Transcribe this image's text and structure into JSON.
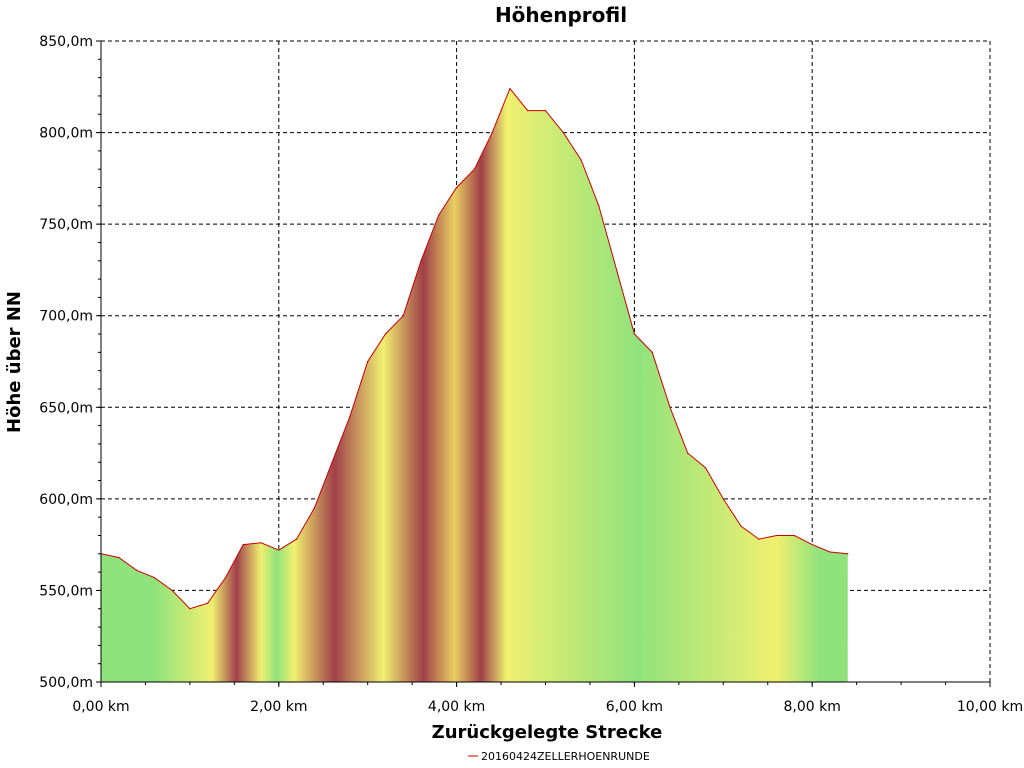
{
  "chart_data": {
    "type": "area",
    "title": "Höhenprofil",
    "xlabel": "Zurückgelegte Strecke",
    "ylabel": "Höhe über NN",
    "xlim": [
      0,
      10
    ],
    "ylim": [
      500,
      850
    ],
    "x_ticks": [
      0,
      2,
      4,
      6,
      8,
      10
    ],
    "x_tick_labels": [
      "0,00 km",
      "2,00 km",
      "4,00 km",
      "6,00 km",
      "8,00 km",
      "10,00 km"
    ],
    "y_ticks": [
      500,
      550,
      600,
      650,
      700,
      750,
      800,
      850
    ],
    "y_tick_labels": [
      "500,0m",
      "550,0m",
      "600,0m",
      "650,0m",
      "700,0m",
      "750,0m",
      "800,0m",
      "850,0m"
    ],
    "grid": true,
    "legend_position": "bottom-center",
    "series": [
      {
        "name": "20160424ZELLERHOENRUNDE",
        "line_color": "#cc0000",
        "x": [
          0,
          0.2,
          0.4,
          0.6,
          0.8,
          1.0,
          1.2,
          1.4,
          1.6,
          1.8,
          2.0,
          2.2,
          2.4,
          2.6,
          2.8,
          3.0,
          3.2,
          3.4,
          3.6,
          3.8,
          4.0,
          4.2,
          4.4,
          4.6,
          4.8,
          5.0,
          5.2,
          5.4,
          5.6,
          5.8,
          6.0,
          6.2,
          6.4,
          6.6,
          6.8,
          7.0,
          7.2,
          7.4,
          7.6,
          7.8,
          8.0,
          8.2,
          8.4
        ],
        "y": [
          570,
          568,
          561,
          557,
          550,
          540,
          543,
          557,
          575,
          576,
          572,
          578,
          595,
          620,
          645,
          675,
          690,
          700,
          730,
          755,
          770,
          780,
          800,
          824,
          812,
          812,
          800,
          785,
          760,
          725,
          690,
          680,
          650,
          625,
          617,
          600,
          585,
          578,
          580,
          580,
          575,
          571,
          570
        ]
      }
    ],
    "gradient_bands": [
      {
        "x0": 0.0,
        "x1": 1.2,
        "color": "#90e27c"
      },
      {
        "x0": 1.2,
        "x1": 1.3,
        "color": "#f0f070"
      },
      {
        "x0": 1.3,
        "x1": 1.75,
        "color": "#a0404a"
      },
      {
        "x0": 1.75,
        "x1": 1.85,
        "color": "#f0f070"
      },
      {
        "x0": 1.85,
        "x1": 2.1,
        "color": "#90e27c"
      },
      {
        "x0": 2.1,
        "x1": 2.25,
        "color": "#f0f070"
      },
      {
        "x0": 2.25,
        "x1": 3.0,
        "color": "#a0404a"
      },
      {
        "x0": 3.0,
        "x1": 3.35,
        "color": "#f0f070"
      },
      {
        "x0": 3.35,
        "x1": 3.9,
        "color": "#a0404a"
      },
      {
        "x0": 3.9,
        "x1": 4.05,
        "color": "#e8d060"
      },
      {
        "x0": 4.05,
        "x1": 4.5,
        "color": "#a0404a"
      },
      {
        "x0": 4.5,
        "x1": 4.62,
        "color": "#f0f070"
      },
      {
        "x0": 4.62,
        "x1": 7.45,
        "color": "#90e27c"
      },
      {
        "x0": 7.45,
        "x1": 7.75,
        "color": "#f0f070"
      },
      {
        "x0": 7.75,
        "x1": 8.4,
        "color": "#90e27c"
      }
    ]
  }
}
